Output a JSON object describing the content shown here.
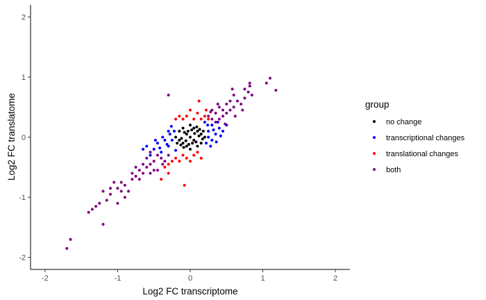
{
  "chart_data": {
    "type": "scatter",
    "xlabel": "Log2 FC transcriptome",
    "ylabel": "Log2 FC translatome",
    "xlim": [
      -2.2,
      2.2
    ],
    "ylim": [
      -2.2,
      2.2
    ],
    "x_ticks": [
      -2,
      -1,
      0,
      1,
      2
    ],
    "y_ticks": [
      -2,
      -1,
      0,
      1,
      2
    ],
    "x_tick_labels": [
      "-2",
      "-1",
      "0",
      "1",
      "2"
    ],
    "y_tick_labels": [
      "-2",
      "-1",
      "0",
      "1",
      "2"
    ],
    "grid": false,
    "legend": {
      "title": "group",
      "position": "right",
      "items": [
        {
          "label": "no change",
          "color": "#000000"
        },
        {
          "label": "transcriptional changes",
          "color": "#0000FF"
        },
        {
          "label": "translational changes",
          "color": "#FF0000"
        },
        {
          "label": "both",
          "color": "#800080"
        }
      ]
    },
    "series": [
      {
        "name": "no change",
        "color": "#000000",
        "points": [
          [
            0.0,
            0.0
          ],
          [
            0.05,
            -0.05
          ],
          [
            -0.05,
            0.05
          ],
          [
            0.1,
            0.1
          ],
          [
            -0.1,
            -0.1
          ],
          [
            0.08,
            -0.08
          ],
          [
            -0.08,
            0.08
          ],
          [
            0.12,
            0.02
          ],
          [
            -0.12,
            -0.02
          ],
          [
            0.02,
            0.12
          ],
          [
            -0.02,
            -0.12
          ],
          [
            0.15,
            0.05
          ],
          [
            -0.15,
            -0.05
          ],
          [
            0.05,
            0.15
          ],
          [
            -0.05,
            -0.15
          ],
          [
            0.1,
            -0.15
          ],
          [
            -0.1,
            0.15
          ],
          [
            0.18,
            0.1
          ],
          [
            -0.18,
            -0.1
          ],
          [
            0.0,
            0.2
          ],
          [
            0.0,
            -0.2
          ],
          [
            0.2,
            0.0
          ],
          [
            -0.2,
            0.0
          ],
          [
            0.15,
            -0.1
          ],
          [
            -0.15,
            0.1
          ],
          [
            0.06,
            0.06
          ],
          [
            -0.06,
            -0.06
          ],
          [
            0.13,
            0.13
          ],
          [
            -0.13,
            -0.13
          ],
          [
            0.03,
            -0.1
          ],
          [
            -0.03,
            0.1
          ],
          [
            0.09,
            0.17
          ],
          [
            -0.09,
            -0.17
          ],
          [
            0.17,
            -0.03
          ]
        ]
      },
      {
        "name": "transcriptional changes",
        "color": "#0000FF",
        "points": [
          [
            -0.5,
            -0.2
          ],
          [
            -0.45,
            -0.1
          ],
          [
            -0.4,
            -0.25
          ],
          [
            -0.35,
            -0.05
          ],
          [
            -0.3,
            -0.15
          ],
          [
            -0.38,
            0.0
          ],
          [
            -0.28,
            0.05
          ],
          [
            -0.25,
            -0.05
          ],
          [
            -0.22,
            0.1
          ],
          [
            -0.6,
            -0.15
          ],
          [
            -0.55,
            -0.3
          ],
          [
            -0.3,
            0.1
          ],
          [
            -0.32,
            -0.12
          ],
          [
            -0.42,
            -0.18
          ],
          [
            -0.26,
            0.18
          ],
          [
            -0.2,
            -0.22
          ],
          [
            -0.48,
            -0.05
          ],
          [
            0.25,
            0.1
          ],
          [
            0.3,
            0.2
          ],
          [
            0.35,
            0.05
          ],
          [
            0.4,
            0.15
          ],
          [
            0.3,
            -0.05
          ],
          [
            0.25,
            0.0
          ],
          [
            0.22,
            -0.1
          ],
          [
            0.45,
            0.1
          ],
          [
            0.38,
            0.25
          ],
          [
            0.28,
            -0.15
          ],
          [
            0.42,
            0.02
          ],
          [
            0.32,
            0.12
          ],
          [
            0.24,
            0.2
          ],
          [
            0.36,
            -0.08
          ],
          [
            0.5,
            0.2
          ],
          [
            -0.65,
            -0.2
          ],
          [
            0.2,
            0.25
          ]
        ]
      },
      {
        "name": "translational changes",
        "color": "#FF0000",
        "points": [
          [
            -0.15,
            0.35
          ],
          [
            -0.05,
            0.35
          ],
          [
            0.05,
            0.3
          ],
          [
            0.1,
            0.4
          ],
          [
            0.15,
            0.3
          ],
          [
            -0.1,
            0.3
          ],
          [
            0.2,
            0.35
          ],
          [
            -0.2,
            0.3
          ],
          [
            0.0,
            0.45
          ],
          [
            0.12,
            0.6
          ],
          [
            0.15,
            -0.35
          ],
          [
            0.05,
            -0.3
          ],
          [
            -0.05,
            -0.35
          ],
          [
            -0.1,
            -0.3
          ],
          [
            -0.15,
            -0.4
          ],
          [
            0.1,
            -0.25
          ],
          [
            -0.2,
            -0.35
          ],
          [
            -0.25,
            -0.4
          ],
          [
            0.0,
            -0.4
          ],
          [
            -0.35,
            -0.5
          ],
          [
            -0.3,
            -0.6
          ],
          [
            -0.4,
            -0.7
          ],
          [
            -0.08,
            -0.8
          ],
          [
            0.25,
            0.3
          ],
          [
            0.22,
            0.45
          ],
          [
            -0.3,
            -0.45
          ]
        ]
      },
      {
        "name": "both",
        "color": "#800080",
        "points": [
          [
            -1.7,
            -1.85
          ],
          [
            -1.65,
            -1.7
          ],
          [
            -1.4,
            -1.25
          ],
          [
            -1.35,
            -1.2
          ],
          [
            -1.25,
            -1.1
          ],
          [
            -1.2,
            -1.45
          ],
          [
            -1.3,
            -1.15
          ],
          [
            -1.15,
            -1.05
          ],
          [
            -1.1,
            -0.95
          ],
          [
            -1.0,
            -0.85
          ],
          [
            -0.95,
            -0.75
          ],
          [
            -0.9,
            -0.8
          ],
          [
            -0.85,
            -0.9
          ],
          [
            -0.8,
            -0.7
          ],
          [
            -0.75,
            -0.65
          ],
          [
            -0.7,
            -0.55
          ],
          [
            -0.65,
            -0.6
          ],
          [
            -0.6,
            -0.5
          ],
          [
            -0.55,
            -0.45
          ],
          [
            -0.5,
            -0.4
          ],
          [
            -0.45,
            -0.55
          ],
          [
            -0.4,
            -0.35
          ],
          [
            -0.35,
            -0.4
          ],
          [
            -0.3,
            -0.3
          ],
          [
            -0.6,
            -0.35
          ],
          [
            -0.55,
            -0.6
          ],
          [
            -0.7,
            -0.7
          ],
          [
            -0.65,
            -0.45
          ],
          [
            -0.5,
            -0.55
          ],
          [
            -0.45,
            -0.3
          ],
          [
            -0.75,
            -0.5
          ],
          [
            -0.8,
            -0.6
          ],
          [
            -1.0,
            -1.1
          ],
          [
            -0.9,
            -1.0
          ],
          [
            -1.1,
            -0.85
          ],
          [
            -1.2,
            -0.9
          ],
          [
            -1.05,
            -0.75
          ],
          [
            -0.95,
            -0.9
          ],
          [
            -0.55,
            -0.25
          ],
          [
            -0.38,
            -0.45
          ],
          [
            -0.3,
            0.7
          ],
          [
            0.25,
            0.35
          ],
          [
            0.3,
            0.3
          ],
          [
            0.35,
            0.4
          ],
          [
            0.4,
            0.3
          ],
          [
            0.45,
            0.35
          ],
          [
            0.5,
            0.4
          ],
          [
            0.55,
            0.45
          ],
          [
            0.6,
            0.5
          ],
          [
            0.55,
            0.6
          ],
          [
            0.5,
            0.55
          ],
          [
            0.45,
            0.45
          ],
          [
            0.35,
            0.25
          ],
          [
            0.3,
            0.45
          ],
          [
            0.4,
            0.5
          ],
          [
            0.65,
            0.6
          ],
          [
            0.7,
            0.55
          ],
          [
            0.6,
            0.7
          ],
          [
            0.75,
            0.65
          ],
          [
            0.8,
            0.75
          ],
          [
            0.85,
            0.7
          ],
          [
            0.62,
            0.35
          ],
          [
            0.48,
            0.22
          ],
          [
            0.28,
            0.42
          ],
          [
            0.72,
            0.45
          ],
          [
            0.38,
            0.55
          ],
          [
            0.75,
            0.8
          ],
          [
            0.82,
            0.85
          ],
          [
            1.05,
            0.9
          ],
          [
            1.1,
            0.98
          ],
          [
            1.18,
            0.78
          ],
          [
            0.82,
            0.9
          ],
          [
            0.58,
            0.8
          ]
        ]
      }
    ]
  }
}
